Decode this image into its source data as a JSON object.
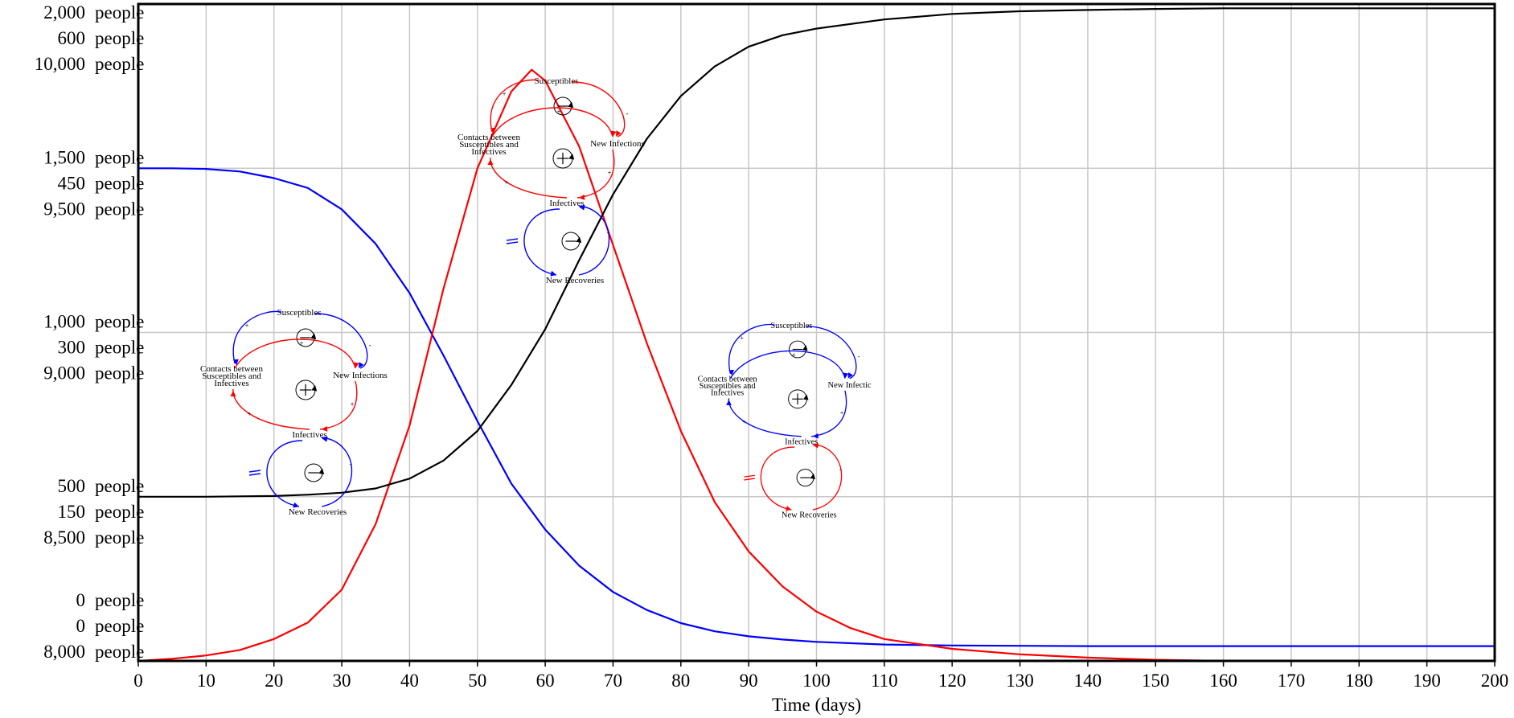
{
  "chart_data": {
    "type": "line",
    "xlabel": "Time (days)",
    "xlim": [
      0,
      200
    ],
    "x_ticks": [
      0,
      10,
      20,
      30,
      40,
      50,
      60,
      70,
      80,
      90,
      100,
      110,
      120,
      130,
      140,
      150,
      160,
      170,
      180,
      190,
      200
    ],
    "grid": true,
    "y_axes": [
      {
        "color": "#0000ff",
        "min": 0,
        "max": 2000,
        "unit": "people",
        "ticks": [
          "2,000",
          "1,500",
          "1,000",
          "500",
          "0"
        ]
      },
      {
        "color": "#ff0000",
        "min": 0,
        "max": 600,
        "unit": "people",
        "ticks": [
          "600",
          "450",
          "300",
          "150",
          "0"
        ]
      },
      {
        "color": "#000000",
        "min": 8000,
        "max": 10000,
        "unit": "people",
        "ticks": [
          "10,000",
          "9,500",
          "9,000",
          "8,500",
          "8,000"
        ]
      }
    ],
    "series": [
      {
        "color": "#0000ff",
        "axis": 0,
        "x": [
          0,
          5,
          10,
          15,
          20,
          25,
          30,
          35,
          40,
          45,
          50,
          55,
          60,
          65,
          70,
          75,
          80,
          85,
          90,
          95,
          100,
          110,
          120,
          130,
          140,
          160,
          180,
          200
        ],
        "values": [
          1500,
          1500,
          1498,
          1490,
          1470,
          1440,
          1375,
          1270,
          1120,
          930,
          730,
          540,
          400,
          290,
          210,
          155,
          115,
          90,
          75,
          65,
          58,
          50,
          47,
          46,
          45,
          45,
          45,
          45
        ]
      },
      {
        "color": "#ff0000",
        "axis": 1,
        "x": [
          0,
          5,
          10,
          15,
          20,
          25,
          30,
          35,
          40,
          45,
          50,
          55,
          58,
          60,
          65,
          70,
          75,
          80,
          85,
          90,
          95,
          100,
          105,
          110,
          120,
          130,
          140,
          150,
          160,
          180,
          200
        ],
        "values": [
          0,
          2,
          5,
          10,
          20,
          35,
          65,
          125,
          215,
          340,
          450,
          520,
          540,
          530,
          470,
          380,
          290,
          210,
          145,
          100,
          68,
          45,
          30,
          20,
          11,
          6,
          3,
          1,
          0,
          0,
          0
        ]
      },
      {
        "color": "#000000",
        "axis": 2,
        "x": [
          0,
          10,
          15,
          20,
          25,
          30,
          35,
          40,
          45,
          50,
          55,
          60,
          65,
          70,
          75,
          80,
          85,
          90,
          95,
          100,
          110,
          120,
          130,
          140,
          150,
          160,
          180,
          200
        ],
        "values": [
          8500,
          8500,
          8501,
          8502,
          8506,
          8512,
          8525,
          8555,
          8610,
          8700,
          8840,
          9010,
          9220,
          9420,
          9590,
          9720,
          9810,
          9870,
          9905,
          9925,
          9953,
          9970,
          9978,
          9982,
          9985,
          9987,
          9987,
          9987
        ]
      }
    ]
  },
  "loop_diagrams": [
    {
      "color_top": "#0000ff",
      "color_middle": "#ff0000",
      "color_bottom": "#0000ff",
      "labels": {
        "susceptibles": "Susceptibles",
        "new_infections": "New Infections",
        "contacts_line1": "Contacts between",
        "contacts_line2": "Susceptibles and",
        "contacts_line3": "Infectives",
        "infectives": "Infectives",
        "new_recoveries": "New Recoveries"
      },
      "signs": {
        "top": "−",
        "middle": "+",
        "bottom": "−"
      }
    },
    {
      "color_top": "#ff0000",
      "color_middle": "#ff0000",
      "color_bottom": "#0000ff",
      "labels": {
        "susceptibles": "Susceptibles",
        "new_infections": "New Infections",
        "contacts_line1": "Contacts between",
        "contacts_line2": "Susceptibles and",
        "contacts_line3": "Infectives",
        "infectives": "Infectives",
        "new_recoveries": "New Recoveries"
      },
      "signs": {
        "top": "−",
        "middle": "+",
        "bottom": "−"
      }
    },
    {
      "color_top": "#0000ff",
      "color_middle": "#0000ff",
      "color_bottom": "#ff0000",
      "labels": {
        "susceptibles": "Susceptibles",
        "new_infections": "New Infectic",
        "contacts_line1": "Contacts between",
        "contacts_line2": "Susceptibles and",
        "contacts_line3": "Infectives",
        "infectives": "Infectives",
        "new_recoveries": "New Recoveries"
      },
      "signs": {
        "top": "−",
        "middle": "+",
        "bottom": "−"
      }
    }
  ]
}
